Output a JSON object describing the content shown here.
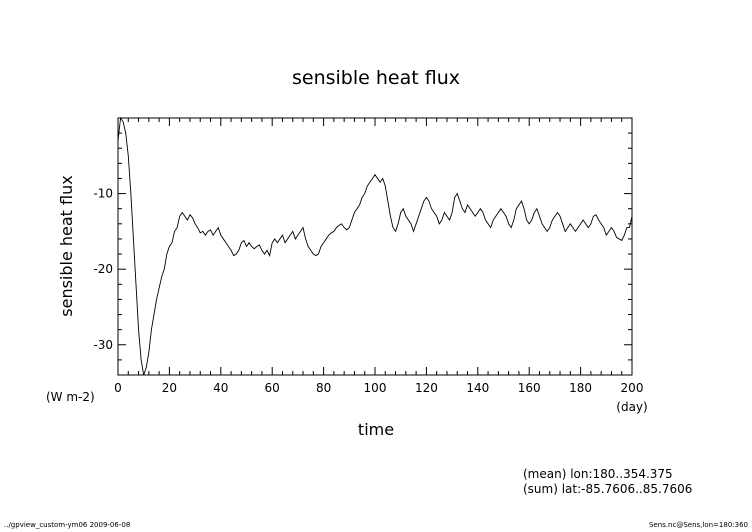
{
  "chart_data": {
    "type": "line",
    "title": "sensible heat flux",
    "ylabel": "sensible heat flux",
    "yunit": "(W m-2)",
    "xlabel": "time",
    "xunit": "(day)",
    "xlim": [
      0,
      200
    ],
    "ylim": [
      -34,
      0
    ],
    "xticks": [
      "0",
      "20",
      "40",
      "60",
      "80",
      "100",
      "120",
      "140",
      "160",
      "180",
      "200"
    ],
    "yticks": [
      {
        "value": -10,
        "label": "-10"
      },
      {
        "value": -20,
        "label": "-20"
      },
      {
        "value": -30,
        "label": "-30"
      }
    ],
    "series": [
      {
        "points": [
          [
            0,
            -3
          ],
          [
            1,
            0
          ],
          [
            2,
            -0.5
          ],
          [
            3,
            -2
          ],
          [
            4,
            -5
          ],
          [
            5,
            -10
          ],
          [
            6,
            -16
          ],
          [
            7,
            -22
          ],
          [
            8,
            -28
          ],
          [
            9,
            -32
          ],
          [
            10,
            -34
          ],
          [
            11,
            -33
          ],
          [
            12,
            -31
          ],
          [
            13,
            -28
          ],
          [
            14,
            -26
          ],
          [
            15,
            -24
          ],
          [
            16,
            -22.5
          ],
          [
            17,
            -21
          ],
          [
            18,
            -20
          ],
          [
            19,
            -18
          ],
          [
            20,
            -17
          ],
          [
            21,
            -16.5
          ],
          [
            22,
            -15
          ],
          [
            23,
            -14.5
          ],
          [
            24,
            -13
          ],
          [
            25,
            -12.5
          ],
          [
            26,
            -13
          ],
          [
            27,
            -13.5
          ],
          [
            28,
            -12.8
          ],
          [
            29,
            -13.2
          ],
          [
            30,
            -14
          ],
          [
            31,
            -14.5
          ],
          [
            32,
            -15.2
          ],
          [
            33,
            -15
          ],
          [
            34,
            -15.5
          ],
          [
            35,
            -15
          ],
          [
            36,
            -14.8
          ],
          [
            37,
            -15.5
          ],
          [
            38,
            -15
          ],
          [
            39,
            -14.5
          ],
          [
            40,
            -15.5
          ],
          [
            41,
            -16
          ],
          [
            42,
            -16.5
          ],
          [
            43,
            -17
          ],
          [
            44,
            -17.5
          ],
          [
            45,
            -18.2
          ],
          [
            46,
            -18
          ],
          [
            47,
            -17.5
          ],
          [
            48,
            -16.5
          ],
          [
            49,
            -16.2
          ],
          [
            50,
            -17
          ],
          [
            51,
            -16.5
          ],
          [
            52,
            -17
          ],
          [
            53,
            -17.3
          ],
          [
            54,
            -17
          ],
          [
            55,
            -16.8
          ],
          [
            56,
            -17.5
          ],
          [
            57,
            -18
          ],
          [
            58,
            -17.5
          ],
          [
            59,
            -18.2
          ],
          [
            60,
            -16.5
          ],
          [
            61,
            -16
          ],
          [
            62,
            -16.5
          ],
          [
            63,
            -16
          ],
          [
            64,
            -15.5
          ],
          [
            65,
            -16.5
          ],
          [
            66,
            -16
          ],
          [
            67,
            -15.5
          ],
          [
            68,
            -15
          ],
          [
            69,
            -16
          ],
          [
            70,
            -15.5
          ],
          [
            71,
            -15
          ],
          [
            72,
            -14.5
          ],
          [
            73,
            -16
          ],
          [
            74,
            -17
          ],
          [
            75,
            -17.5
          ],
          [
            76,
            -18
          ],
          [
            77,
            -18.2
          ],
          [
            78,
            -18
          ],
          [
            79,
            -17
          ],
          [
            80,
            -16.5
          ],
          [
            81,
            -16
          ],
          [
            82,
            -15.5
          ],
          [
            83,
            -15.2
          ],
          [
            84,
            -15
          ],
          [
            85,
            -14.5
          ],
          [
            86,
            -14.2
          ],
          [
            87,
            -14
          ],
          [
            88,
            -14.5
          ],
          [
            89,
            -14.8
          ],
          [
            90,
            -14.5
          ],
          [
            91,
            -13.5
          ],
          [
            92,
            -12.5
          ],
          [
            93,
            -12
          ],
          [
            94,
            -11.5
          ],
          [
            95,
            -10.5
          ],
          [
            96,
            -10
          ],
          [
            97,
            -9
          ],
          [
            98,
            -8.5
          ],
          [
            99,
            -8
          ],
          [
            100,
            -7.5
          ],
          [
            101,
            -8
          ],
          [
            102,
            -8.5
          ],
          [
            103,
            -8
          ],
          [
            104,
            -9
          ],
          [
            105,
            -11
          ],
          [
            106,
            -13
          ],
          [
            107,
            -14.5
          ],
          [
            108,
            -15
          ],
          [
            109,
            -14
          ],
          [
            110,
            -12.5
          ],
          [
            111,
            -12
          ],
          [
            112,
            -13
          ],
          [
            113,
            -13.5
          ],
          [
            114,
            -14
          ],
          [
            115,
            -15
          ],
          [
            116,
            -14
          ],
          [
            117,
            -13
          ],
          [
            118,
            -12
          ],
          [
            119,
            -11
          ],
          [
            120,
            -10.5
          ],
          [
            121,
            -11
          ],
          [
            122,
            -12
          ],
          [
            123,
            -12.5
          ],
          [
            124,
            -13
          ],
          [
            125,
            -14
          ],
          [
            126,
            -13.5
          ],
          [
            127,
            -12.5
          ],
          [
            128,
            -13
          ],
          [
            129,
            -13.5
          ],
          [
            130,
            -12.5
          ],
          [
            131,
            -10.5
          ],
          [
            132,
            -10
          ],
          [
            133,
            -11
          ],
          [
            134,
            -12
          ],
          [
            135,
            -12.5
          ],
          [
            136,
            -11.5
          ],
          [
            137,
            -12
          ],
          [
            138,
            -12.5
          ],
          [
            139,
            -13
          ],
          [
            140,
            -12.5
          ],
          [
            141,
            -12
          ],
          [
            142,
            -12.5
          ],
          [
            143,
            -13.5
          ],
          [
            144,
            -14
          ],
          [
            145,
            -14.5
          ],
          [
            146,
            -13.5
          ],
          [
            147,
            -13
          ],
          [
            148,
            -12.5
          ],
          [
            149,
            -12
          ],
          [
            150,
            -12.5
          ],
          [
            151,
            -13
          ],
          [
            152,
            -14
          ],
          [
            153,
            -14.5
          ],
          [
            154,
            -13.5
          ],
          [
            155,
            -12
          ],
          [
            156,
            -11.5
          ],
          [
            157,
            -11
          ],
          [
            158,
            -12
          ],
          [
            159,
            -13.5
          ],
          [
            160,
            -14
          ],
          [
            161,
            -13.5
          ],
          [
            162,
            -12.5
          ],
          [
            163,
            -12
          ],
          [
            164,
            -13
          ],
          [
            165,
            -14
          ],
          [
            166,
            -14.5
          ],
          [
            167,
            -15
          ],
          [
            168,
            -14.5
          ],
          [
            169,
            -13.5
          ],
          [
            170,
            -13
          ],
          [
            171,
            -12.5
          ],
          [
            172,
            -13
          ],
          [
            173,
            -14
          ],
          [
            174,
            -15
          ],
          [
            175,
            -14.5
          ],
          [
            176,
            -14
          ],
          [
            177,
            -14.5
          ],
          [
            178,
            -15
          ],
          [
            179,
            -14.5
          ],
          [
            180,
            -14
          ],
          [
            181,
            -13.5
          ],
          [
            182,
            -14
          ],
          [
            183,
            -14.5
          ],
          [
            184,
            -14
          ],
          [
            185,
            -13
          ],
          [
            186,
            -12.8
          ],
          [
            187,
            -13.5
          ],
          [
            188,
            -14
          ],
          [
            189,
            -14.5
          ],
          [
            190,
            -15.5
          ],
          [
            191,
            -15
          ],
          [
            192,
            -14.5
          ],
          [
            193,
            -15
          ],
          [
            194,
            -15.8
          ],
          [
            195,
            -16
          ],
          [
            196,
            -16.2
          ],
          [
            197,
            -15.5
          ],
          [
            198,
            -14.5
          ],
          [
            199,
            -14.5
          ],
          [
            200,
            -13
          ]
        ]
      }
    ]
  },
  "annotations": {
    "mean": "(mean) lon:180..354.375",
    "sum": "(sum) lat:-85.7606..85.7606"
  },
  "footer": {
    "left": "../gpview_custom-ym06   2009-06-08",
    "right": "Sens.nc@Sens,lon=180:360"
  }
}
